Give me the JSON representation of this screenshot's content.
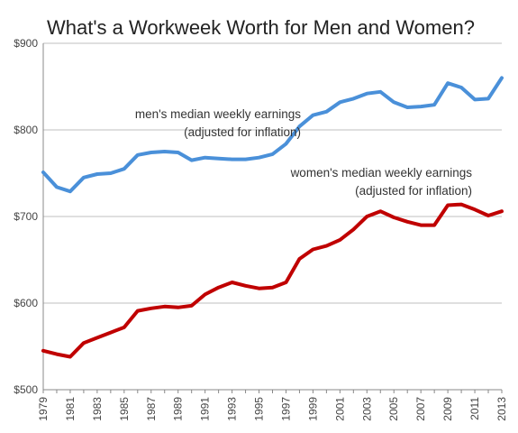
{
  "chart_data": {
    "type": "line",
    "title": "What's a Workweek Worth for Men and Women?",
    "xlabel": "",
    "ylabel": "",
    "ylim": [
      500,
      900
    ],
    "xlim": [
      1979,
      2013
    ],
    "grid": true,
    "y_ticks": [
      {
        "value": 500,
        "label": "$500"
      },
      {
        "value": 600,
        "label": "$600"
      },
      {
        "value": 700,
        "label": "$700"
      },
      {
        "value": 800,
        "label": "$800"
      },
      {
        "value": 900,
        "label": "$900"
      }
    ],
    "x_ticks": [
      "1979",
      "1981",
      "1983",
      "1985",
      "1987",
      "1989",
      "1991",
      "1993",
      "1995",
      "1997",
      "1999",
      "2001",
      "2003",
      "2005",
      "2007",
      "2009",
      "2011",
      "2013"
    ],
    "x": [
      1979,
      1980,
      1981,
      1982,
      1983,
      1984,
      1985,
      1986,
      1987,
      1988,
      1989,
      1990,
      1991,
      1992,
      1993,
      1994,
      1995,
      1996,
      1997,
      1998,
      1999,
      2000,
      2001,
      2002,
      2003,
      2004,
      2005,
      2006,
      2007,
      2008,
      2009,
      2010,
      2011,
      2012,
      2013
    ],
    "series": [
      {
        "name_lines": [
          "men's median weekly earnings",
          "(adjusted for inflation)"
        ],
        "color": "#4a90d9",
        "values": [
          751,
          734,
          729,
          745,
          749,
          750,
          755,
          771,
          774,
          775,
          774,
          765,
          768,
          767,
          766,
          766,
          768,
          772,
          784,
          804,
          817,
          821,
          832,
          836,
          842,
          844,
          832,
          826,
          827,
          829,
          854,
          849,
          835,
          836,
          860
        ]
      },
      {
        "name_lines": [
          "women's median weekly earnings",
          "(adjusted for inflation)"
        ],
        "color": "#c00000",
        "values": [
          545,
          541,
          538,
          554,
          560,
          566,
          572,
          591,
          594,
          596,
          595,
          597,
          610,
          618,
          624,
          620,
          617,
          618,
          624,
          651,
          662,
          666,
          673,
          685,
          700,
          706,
          699,
          694,
          690,
          690,
          713,
          714,
          708,
          701,
          706
        ]
      }
    ]
  }
}
